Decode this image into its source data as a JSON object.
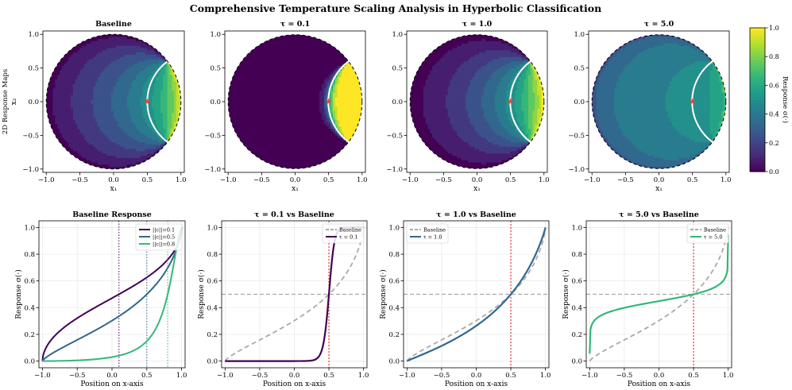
{
  "figure": {
    "suptitle": "Comprehensive Temperature Scaling Analysis in Hyperbolic Classification"
  },
  "colorbar": {
    "label": "Response σ(·)",
    "ticks": [
      "0.0",
      "0.2",
      "0.4",
      "0.6",
      "0.8",
      "1.0"
    ],
    "colormap": "viridis",
    "range": [
      0.0,
      1.0
    ]
  },
  "chart_data": [
    {
      "type": "heatmap",
      "title": "Baseline",
      "xlabel": "x₁",
      "ylabel": "x₂",
      "row_label": "2D Response Maps",
      "xlim": [
        -1.05,
        1.05
      ],
      "ylim": [
        -1.05,
        1.05
      ],
      "xticks": [
        "−1.0",
        "−0.5",
        "0.0",
        "0.5",
        "1.0"
      ],
      "yticks": [
        "−1.0",
        "−0.5",
        "0.0",
        "0.5",
        "1.0"
      ],
      "tau": null,
      "center": [
        0.5,
        0.0
      ],
      "response_range": [
        0.18,
        0.62
      ],
      "boundary": "unit disk (dashed)",
      "decision_arc": "white geodesic through center"
    },
    {
      "type": "heatmap",
      "title": "τ = 0.1",
      "xlabel": "x₁",
      "xticks": [
        "−1.0",
        "−0.5",
        "0.0",
        "0.5",
        "1.0"
      ],
      "yticks": [
        "−1.0",
        "−0.5",
        "0.0",
        "0.5",
        "1.0"
      ],
      "tau": 0.1,
      "center": [
        0.5,
        0.0
      ],
      "response_range": [
        0.0,
        1.0
      ]
    },
    {
      "type": "heatmap",
      "title": "τ = 1.0",
      "xlabel": "x₁",
      "xticks": [
        "−1.0",
        "−0.5",
        "0.0",
        "0.5",
        "1.0"
      ],
      "yticks": [
        "−1.0",
        "−0.5",
        "0.0",
        "0.5",
        "1.0"
      ],
      "tau": 1.0,
      "center": [
        0.5,
        0.0
      ],
      "response_range": [
        0.02,
        0.79
      ]
    },
    {
      "type": "heatmap",
      "title": "τ = 5.0",
      "xlabel": "x₁",
      "xticks": [
        "−1.0",
        "−0.5",
        "0.0",
        "0.5",
        "1.0"
      ],
      "yticks": [
        "−1.0",
        "−0.5",
        "0.0",
        "0.5",
        "1.0"
      ],
      "tau": 5.0,
      "center": [
        0.5,
        0.0
      ],
      "response_range": [
        0.31,
        0.56
      ]
    },
    {
      "type": "line",
      "title": "Baseline Response",
      "xlabel": "Position on x-axis",
      "ylabel": "Response σ(·)",
      "xlim": [
        -1.05,
        1.05
      ],
      "ylim": [
        -0.05,
        1.05
      ],
      "xticks": [
        "−1.0",
        "−0.5",
        "0.0",
        "0.5",
        "1.0"
      ],
      "yticks": [
        "0.0",
        "0.2",
        "0.4",
        "0.6",
        "0.8",
        "1.0"
      ],
      "legend": "top-right",
      "x": [
        -1.0,
        -0.5,
        0.0,
        0.5,
        1.0
      ],
      "series": [
        {
          "name": "||c||=0.1",
          "values": [
            0.26,
            0.37,
            0.48,
            0.6,
            0.72
          ],
          "color": "#440154",
          "vline": 0.1
        },
        {
          "name": "||c||=0.5",
          "values": [
            0.18,
            0.28,
            0.39,
            0.5,
            0.62
          ],
          "color": "#31688e",
          "vline": 0.5
        },
        {
          "name": "||c||=0.8",
          "values": [
            0.14,
            0.22,
            0.32,
            0.43,
            0.55
          ],
          "color": "#35b779",
          "vline": 0.8
        }
      ]
    },
    {
      "type": "line",
      "title": "τ = 0.1 vs Baseline",
      "xlabel": "Position on x-axis",
      "ylabel": "Response σ(·)",
      "xlim": [
        -1.05,
        1.05
      ],
      "ylim": [
        -0.05,
        1.05
      ],
      "xticks": [
        "−1.0",
        "−0.5",
        "0.0",
        "0.5",
        "1.0"
      ],
      "yticks": [
        "0.0",
        "0.2",
        "0.4",
        "0.6",
        "0.8",
        "1.0"
      ],
      "legend": "top-right",
      "hline": 0.5,
      "vline": 0.5,
      "tau": 0.1,
      "series": [
        {
          "name": "Baseline",
          "color": "#aaaaaa",
          "dashed": true
        },
        {
          "name": "τ = 0.1",
          "color": "#440154"
        }
      ]
    },
    {
      "type": "line",
      "title": "τ = 1.0 vs Baseline",
      "xlabel": "Position on x-axis",
      "ylabel": "Response σ(·)",
      "xlim": [
        -1.05,
        1.05
      ],
      "ylim": [
        -0.05,
        1.05
      ],
      "xticks": [
        "−1.0",
        "−0.5",
        "0.0",
        "0.5",
        "1.0"
      ],
      "yticks": [
        "0.0",
        "0.2",
        "0.4",
        "0.6",
        "0.8",
        "1.0"
      ],
      "legend": "top-left",
      "hline": 0.5,
      "vline": 0.5,
      "tau": 1.0,
      "series": [
        {
          "name": "Baseline",
          "color": "#aaaaaa",
          "dashed": true
        },
        {
          "name": "τ = 1.0",
          "color": "#31688e"
        }
      ]
    },
    {
      "type": "line",
      "title": "τ = 5.0 vs Baseline",
      "xlabel": "Position on x-axis",
      "ylabel": "Response σ(·)",
      "xlim": [
        -1.05,
        1.05
      ],
      "ylim": [
        -0.05,
        1.05
      ],
      "xticks": [
        "−1.0",
        "−0.5",
        "0.0",
        "0.5",
        "1.0"
      ],
      "yticks": [
        "0.0",
        "0.2",
        "0.4",
        "0.6",
        "0.8",
        "1.0"
      ],
      "legend": "top-right",
      "hline": 0.5,
      "vline": 0.5,
      "tau": 5.0,
      "series": [
        {
          "name": "Baseline",
          "color": "#aaaaaa",
          "dashed": true
        },
        {
          "name": "τ = 5.0",
          "color": "#35b779"
        }
      ]
    }
  ]
}
